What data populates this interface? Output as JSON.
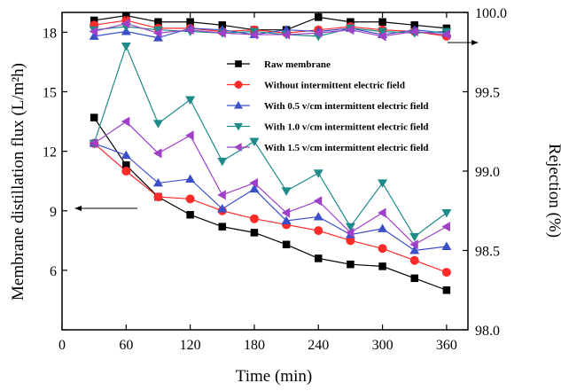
{
  "chart_data": {
    "type": "line",
    "xlabel": "Time (min)",
    "ylabel_left": "Membrane distillation flux (L/m²h)",
    "ylabel_right": "Rejection (%)",
    "xlim": [
      0,
      380
    ],
    "ylim_left": [
      3,
      19
    ],
    "ylim_right": [
      98.0,
      100.0
    ],
    "x_ticks": [
      0,
      60,
      120,
      180,
      240,
      300,
      360
    ],
    "y_ticks_left": [
      3,
      6,
      9,
      12,
      15,
      18
    ],
    "y_ticks_right": [
      98.0,
      98.5,
      99.0,
      99.5,
      100.0
    ],
    "y_ticks_right_labels": [
      "98.0",
      "98.5",
      "99.0",
      "99.5",
      "100.0"
    ],
    "x": [
      30,
      60,
      90,
      120,
      150,
      180,
      210,
      240,
      270,
      300,
      330,
      360
    ],
    "legend_position": "top-right",
    "flux_series": [
      {
        "name": "Raw membrane",
        "color": "#000000",
        "marker": "square",
        "values": [
          13.7,
          11.3,
          9.7,
          8.8,
          8.2,
          7.9,
          7.3,
          6.6,
          6.3,
          6.2,
          5.6,
          5.0
        ]
      },
      {
        "name": "Without intermittent electric field",
        "color": "#ff2a2a",
        "marker": "circle",
        "values": [
          12.4,
          11.0,
          9.7,
          9.6,
          9.0,
          8.6,
          8.3,
          8.0,
          7.5,
          7.1,
          6.5,
          5.9
        ]
      },
      {
        "name": "With 0.5 v/cm intermittent electric field",
        "color": "#3a4fc8",
        "marker": "triangle-up",
        "values": [
          12.4,
          11.8,
          10.4,
          10.6,
          9.1,
          10.1,
          8.5,
          8.7,
          7.8,
          8.1,
          7.0,
          7.2
        ]
      },
      {
        "name": "With 1.0 v/cm intermittent electric field",
        "color": "#1f8a8a",
        "marker": "triangle-down",
        "values": [
          12.4,
          17.3,
          13.4,
          14.6,
          11.5,
          12.5,
          10.0,
          10.9,
          8.2,
          10.4,
          7.7,
          8.9
        ]
      },
      {
        "name": "With 1.5 v/cm intermittent electric field",
        "color": "#a040c8",
        "marker": "triangle-left",
        "values": [
          12.4,
          13.5,
          11.9,
          12.8,
          9.8,
          10.4,
          8.9,
          9.5,
          7.9,
          8.9,
          7.3,
          8.2
        ]
      }
    ],
    "rejection_series": [
      {
        "name": "Raw membrane",
        "color": "#000000",
        "marker": "square",
        "values": [
          99.95,
          99.98,
          99.94,
          99.94,
          99.92,
          99.89,
          99.89,
          99.97,
          99.94,
          99.94,
          99.92,
          99.9
        ]
      },
      {
        "name": "Without intermittent electric field",
        "color": "#ff2a2a",
        "marker": "circle",
        "values": [
          99.92,
          99.95,
          99.9,
          99.9,
          99.88,
          99.89,
          99.87,
          99.89,
          99.91,
          99.89,
          99.88,
          99.85
        ]
      },
      {
        "name": "With 0.5 v/cm intermittent electric field",
        "color": "#3a4fc8",
        "marker": "triangle-up",
        "values": [
          99.85,
          99.88,
          99.84,
          99.9,
          99.89,
          99.86,
          99.89,
          99.88,
          99.9,
          99.86,
          99.89,
          99.87
        ]
      },
      {
        "name": "With 1.0 v/cm intermittent electric field",
        "color": "#1f8a8a",
        "marker": "triangle-down",
        "values": [
          99.89,
          99.91,
          99.89,
          99.88,
          99.87,
          99.88,
          99.86,
          99.85,
          99.9,
          99.88,
          99.87,
          99.88
        ]
      },
      {
        "name": "With 1.5 v/cm intermittent electric field",
        "color": "#a040c8",
        "marker": "triangle-left",
        "values": [
          99.88,
          99.93,
          99.87,
          99.89,
          99.87,
          99.86,
          99.86,
          99.87,
          99.89,
          99.85,
          99.88,
          99.86
        ]
      }
    ]
  }
}
